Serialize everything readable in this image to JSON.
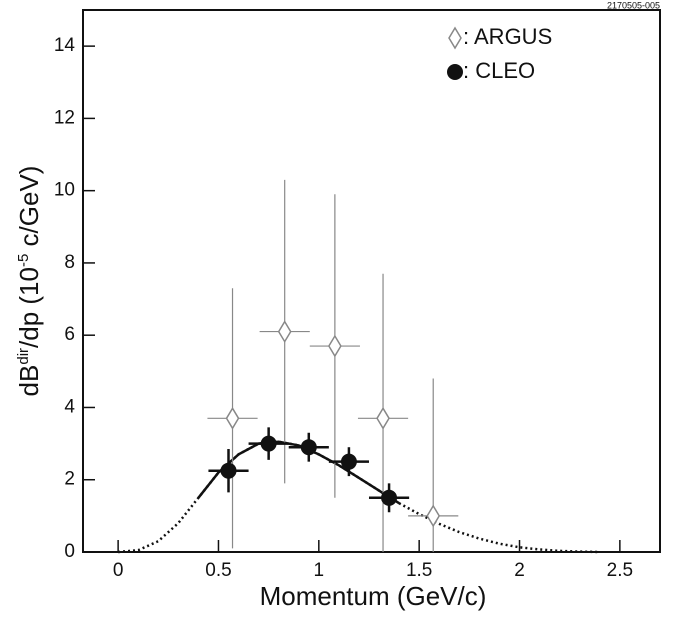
{
  "chart_data": {
    "type": "scatter",
    "note": "2170505-005",
    "x_label": "Momentum (GeV/c)",
    "y_label_parts": [
      "dB",
      "dir",
      "/dp (10",
      "-5",
      " c/GeV)"
    ],
    "xlim": [
      -0.175,
      2.7
    ],
    "ylim": [
      0,
      15
    ],
    "xticks": [
      0,
      0.5,
      1,
      1.5,
      2,
      2.5
    ],
    "yticks": [
      0,
      2,
      4,
      6,
      8,
      10,
      12,
      14
    ],
    "series": [
      {
        "name": ": ARGUS",
        "marker": "open-diamond",
        "color": "#888888",
        "x": [
          0.57,
          0.83,
          1.08,
          1.32,
          1.57
        ],
        "values": [
          3.7,
          6.1,
          5.7,
          3.7,
          1.0
        ],
        "errors": [
          3.6,
          4.2,
          4.2,
          4.0,
          3.8
        ],
        "xerr": [
          0.125,
          0.125,
          0.125,
          0.125,
          0.125
        ]
      },
      {
        "name": ": CLEO",
        "marker": "filled-circle",
        "color": "#111111",
        "x": [
          0.55,
          0.75,
          0.95,
          1.15,
          1.35
        ],
        "values": [
          2.25,
          3.0,
          2.9,
          2.5,
          1.5
        ],
        "errors": [
          0.6,
          0.45,
          0.4,
          0.4,
          0.4
        ],
        "xerr": [
          0.1,
          0.1,
          0.1,
          0.1,
          0.1
        ]
      }
    ],
    "curves": [
      {
        "style": "dotted",
        "color": "#111111",
        "x": [
          0,
          0.1,
          0.2,
          0.3,
          0.4,
          0.5,
          0.6,
          0.7,
          0.8,
          0.9,
          1.0,
          1.1,
          1.2,
          1.3,
          1.4,
          1.5,
          1.6,
          1.7,
          1.8,
          1.9,
          2.0,
          2.1,
          2.2,
          2.3,
          2.4
        ],
        "values": [
          0,
          0.05,
          0.3,
          0.8,
          1.5,
          2.2,
          2.7,
          3.0,
          3.05,
          2.95,
          2.7,
          2.4,
          2.05,
          1.7,
          1.35,
          1.05,
          0.78,
          0.55,
          0.37,
          0.23,
          0.13,
          0.07,
          0.03,
          0.01,
          0
        ]
      },
      {
        "style": "solid",
        "color": "#111111",
        "x": [
          0.4,
          0.5,
          0.6,
          0.7,
          0.8,
          0.9,
          1.0,
          1.1,
          1.2,
          1.3,
          1.4
        ],
        "values": [
          1.5,
          2.2,
          2.7,
          3.0,
          3.05,
          2.95,
          2.7,
          2.4,
          2.05,
          1.7,
          1.35
        ]
      }
    ],
    "legend": "top-right"
  }
}
